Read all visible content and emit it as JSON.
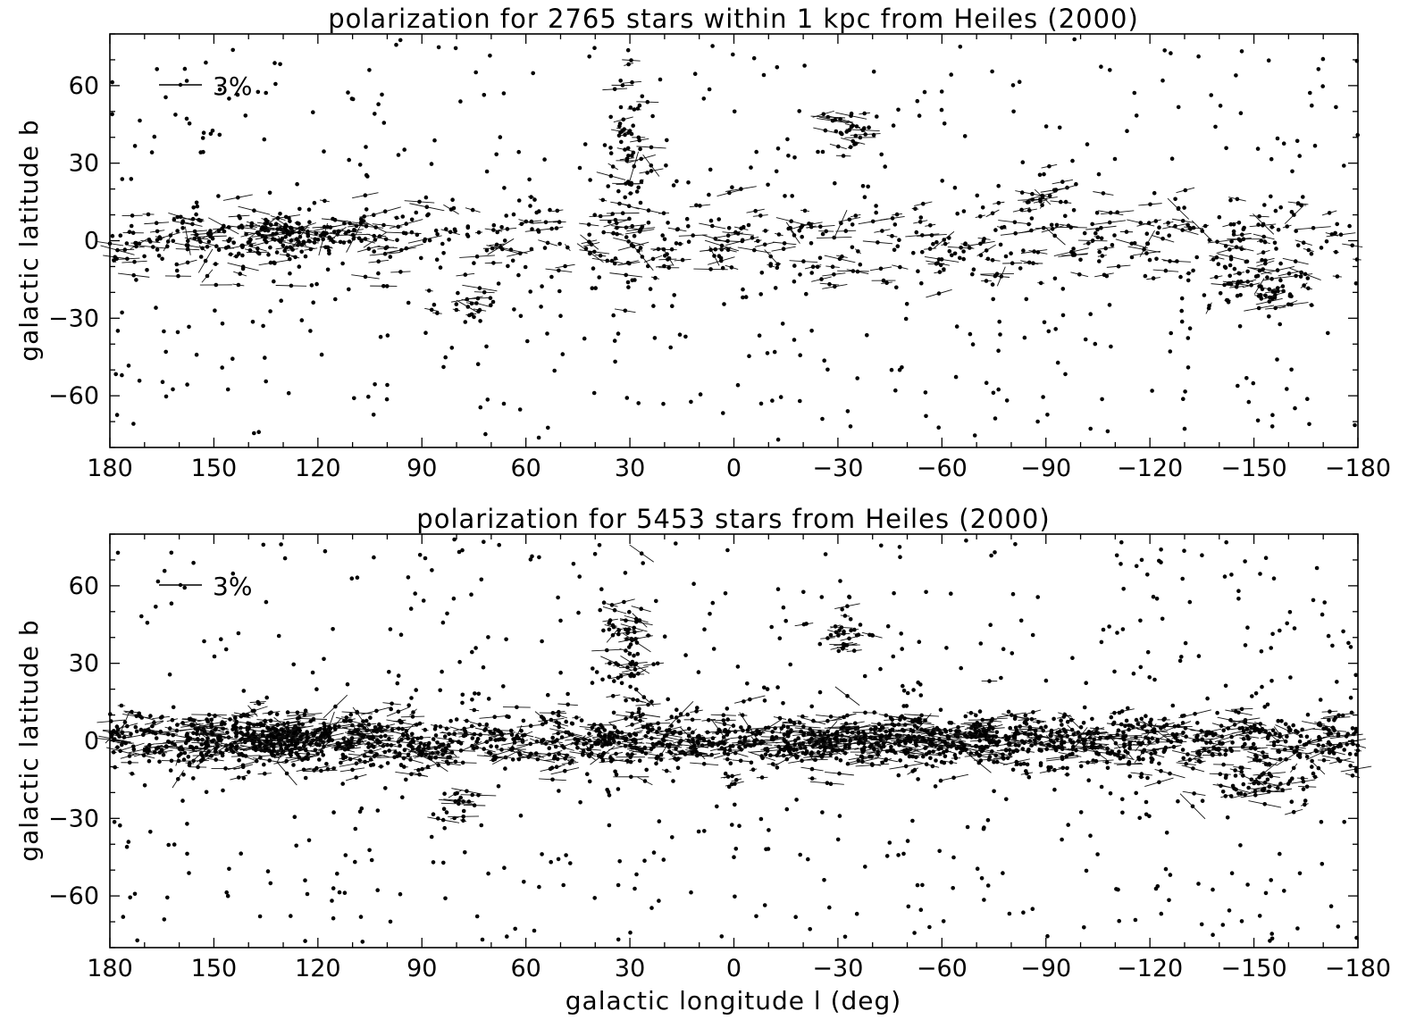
{
  "chart_data": [
    {
      "type": "scatter",
      "title": "polarization for 2765 stars within 1 kpc from Heiles (2000)",
      "xlabel": "",
      "ylabel": "galactic latitude b",
      "xlim": [
        180,
        -180
      ],
      "ylim": [
        -80,
        80
      ],
      "xticks": [
        180,
        150,
        120,
        90,
        60,
        30,
        0,
        -30,
        -60,
        -90,
        -120,
        -150,
        -180
      ],
      "xtick_labels": [
        "180",
        "150",
        "120",
        "90",
        "60",
        "30",
        "0",
        "−30",
        "−60",
        "−90",
        "−120",
        "−150",
        "−180"
      ],
      "yticks": [
        60,
        30,
        0,
        -30,
        -60
      ],
      "ytick_labels": [
        "60",
        "30",
        "0",
        "−30",
        "−60"
      ],
      "legend": {
        "label": "3%",
        "placement": "top-left"
      },
      "grid": false,
      "n_stars_shown_in_title": 2765,
      "star_density": {
        "plane_band_halfwidth_deg": 8,
        "plane_band_fraction": 0.55,
        "concentration": "galactic plane |b| < 10"
      },
      "clusters": [
        {
          "l": 132,
          "b": 3,
          "spread_l": 14,
          "spread_b": 4,
          "n": 120
        },
        {
          "l": 30,
          "b": 28,
          "spread_l": 3,
          "spread_b": 18,
          "n": 70
        },
        {
          "l": -32,
          "b": 42,
          "spread_l": 5,
          "spread_b": 4,
          "n": 30
        },
        {
          "l": -152,
          "b": -18,
          "spread_l": 8,
          "spread_b": 5,
          "n": 60
        },
        {
          "l": 78,
          "b": -25,
          "spread_l": 4,
          "spread_b": 4,
          "n": 20
        },
        {
          "l": -90,
          "b": 20,
          "spread_l": 4,
          "spread_b": 4,
          "n": 15
        }
      ]
    },
    {
      "type": "scatter",
      "title": "polarization for 5453 stars from Heiles (2000)",
      "xlabel": "galactic longitude l (deg)",
      "ylabel": "galactic latitude b",
      "xlim": [
        180,
        -180
      ],
      "ylim": [
        -80,
        80
      ],
      "xticks": [
        180,
        150,
        120,
        90,
        60,
        30,
        0,
        -30,
        -60,
        -90,
        -120,
        -150,
        -180
      ],
      "xtick_labels": [
        "180",
        "150",
        "120",
        "90",
        "60",
        "30",
        "0",
        "−30",
        "−60",
        "−90",
        "−120",
        "−150",
        "−180"
      ],
      "yticks": [
        60,
        30,
        0,
        -30,
        -60
      ],
      "ytick_labels": [
        "60",
        "30",
        "0",
        "−30",
        "−60"
      ],
      "legend": {
        "label": "3%",
        "placement": "top-left"
      },
      "grid": false,
      "n_stars_shown_in_title": 5453,
      "star_density": {
        "plane_band_halfwidth_deg": 6,
        "plane_band_fraction": 0.72,
        "concentration": "galactic plane |b| < 10"
      },
      "clusters": [
        {
          "l": 132,
          "b": 2,
          "spread_l": 14,
          "spread_b": 4,
          "n": 200
        },
        {
          "l": -50,
          "b": 0,
          "spread_l": 30,
          "spread_b": 3,
          "n": 250
        },
        {
          "l": 30,
          "b": 28,
          "spread_l": 3,
          "spread_b": 18,
          "n": 70
        },
        {
          "l": -32,
          "b": 42,
          "spread_l": 5,
          "spread_b": 4,
          "n": 30
        },
        {
          "l": -152,
          "b": -18,
          "spread_l": 8,
          "spread_b": 5,
          "n": 55
        },
        {
          "l": 78,
          "b": -25,
          "spread_l": 4,
          "spread_b": 4,
          "n": 20
        }
      ]
    }
  ],
  "colors": {
    "background": "#ffffff",
    "ink": "#000000"
  }
}
